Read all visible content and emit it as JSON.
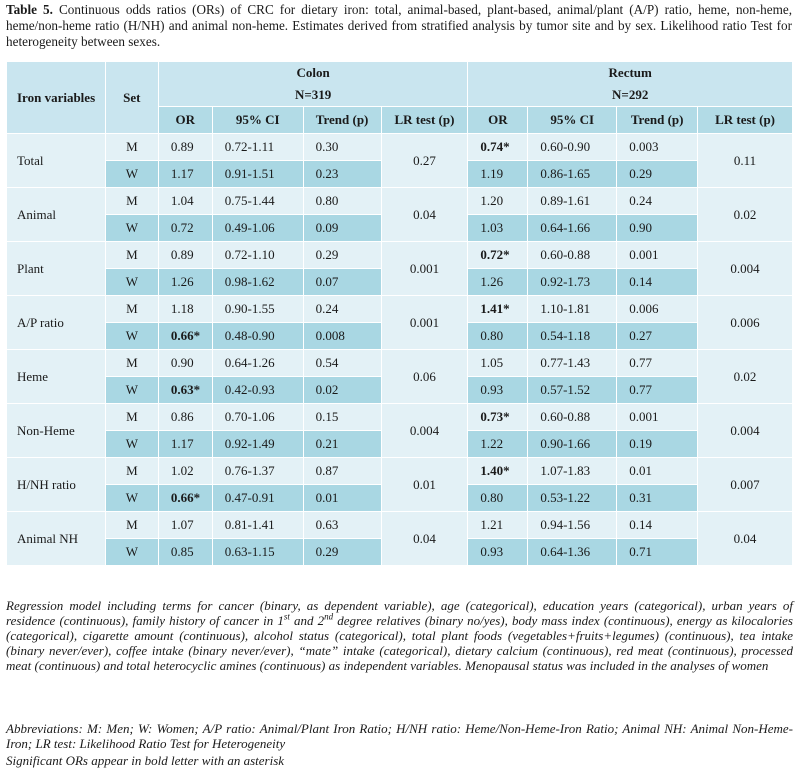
{
  "caption": {
    "label": "Table 5.",
    "text": "Continuous odds ratios (ORs) of CRC for dietary iron: total, animal-based, plant-based, animal/plant (A/P) ratio, heme, non-heme, heme/non-heme ratio (H/NH) and animal non-heme. Estimates derived from stratified analysis by tumor site and by sex. Likelihood ratio Test for heterogeneity between sexes."
  },
  "header": {
    "iron_variables": "Iron variables",
    "set": "Set",
    "colon": "Colon",
    "colon_n": "N=319",
    "rectum": "Rectum",
    "rectum_n": "N=292",
    "cols": [
      "OR",
      "95% CI",
      "Trend (p)",
      "LR test (p)",
      "OR",
      "95% CI",
      "Trend (p)",
      "LR test (p)"
    ]
  },
  "rows": [
    {
      "variable": "Total",
      "colon_lr": "0.27",
      "rectum_lr": "0.11",
      "M": {
        "c_or": "0.89",
        "c_ci": "0.72-1.11",
        "c_tr": "0.30",
        "r_or": "0.74*",
        "r_ci": "0.60-0.90",
        "r_tr": "0.003"
      },
      "W": {
        "c_or": "1.17",
        "c_ci": "0.91-1.51",
        "c_tr": "0.23",
        "r_or": "1.19",
        "r_ci": "0.86-1.65",
        "r_tr": "0.29"
      }
    },
    {
      "variable": "Animal",
      "colon_lr": "0.04",
      "rectum_lr": "0.02",
      "M": {
        "c_or": "1.04",
        "c_ci": "0.75-1.44",
        "c_tr": "0.80",
        "r_or": "1.20",
        "r_ci": "0.89-1.61",
        "r_tr": "0.24"
      },
      "W": {
        "c_or": "0.72",
        "c_ci": "0.49-1.06",
        "c_tr": "0.09",
        "r_or": "1.03",
        "r_ci": "0.64-1.66",
        "r_tr": "0.90"
      }
    },
    {
      "variable": "Plant",
      "colon_lr": "0.001",
      "rectum_lr": "0.004",
      "M": {
        "c_or": "0.89",
        "c_ci": "0.72-1.10",
        "c_tr": "0.29",
        "r_or": "0.72*",
        "r_ci": "0.60-0.88",
        "r_tr": "0.001"
      },
      "W": {
        "c_or": "1.26",
        "c_ci": "0.98-1.62",
        "c_tr": "0.07",
        "r_or": "1.26",
        "r_ci": "0.92-1.73",
        "r_tr": "0.14"
      }
    },
    {
      "variable": "A/P ratio",
      "colon_lr": "0.001",
      "rectum_lr": "0.006",
      "M": {
        "c_or": "1.18",
        "c_ci": "0.90-1.55",
        "c_tr": "0.24",
        "r_or": "1.41*",
        "r_ci": "1.10-1.81",
        "r_tr": "0.006"
      },
      "W": {
        "c_or": "0.66*",
        "c_ci": "0.48-0.90",
        "c_tr": "0.008",
        "r_or": "0.80",
        "r_ci": "0.54-1.18",
        "r_tr": "0.27"
      }
    },
    {
      "variable": "Heme",
      "colon_lr": "0.06",
      "rectum_lr": "0.02",
      "M": {
        "c_or": "0.90",
        "c_ci": "0.64-1.26",
        "c_tr": "0.54",
        "r_or": "1.05",
        "r_ci": "0.77-1.43",
        "r_tr": "0.77"
      },
      "W": {
        "c_or": "0.63*",
        "c_ci": "0.42-0.93",
        "c_tr": "0.02",
        "r_or": "0.93",
        "r_ci": "0.57-1.52",
        "r_tr": "0.77"
      }
    },
    {
      "variable": "Non-Heme",
      "colon_lr": "0.004",
      "rectum_lr": "0.004",
      "M": {
        "c_or": "0.86",
        "c_ci": "0.70-1.06",
        "c_tr": "0.15",
        "r_or": "0.73*",
        "r_ci": "0.60-0.88",
        "r_tr": "0.001"
      },
      "W": {
        "c_or": "1.17",
        "c_ci": "0.92-1.49",
        "c_tr": "0.21",
        "r_or": "1.22",
        "r_ci": "0.90-1.66",
        "r_tr": "0.19"
      }
    },
    {
      "variable": "H/NH ratio",
      "colon_lr": "0.01",
      "rectum_lr": "0.007",
      "M": {
        "c_or": "1.02",
        "c_ci": "0.76-1.37",
        "c_tr": "0.87",
        "r_or": "1.40*",
        "r_ci": "1.07-1.83",
        "r_tr": "0.01"
      },
      "W": {
        "c_or": "0.66*",
        "c_ci": "0.47-0.91",
        "c_tr": "0.01",
        "r_or": "0.80",
        "r_ci": "0.53-1.22",
        "r_tr": "0.31"
      }
    },
    {
      "variable": "Animal NH",
      "colon_lr": "0.04",
      "rectum_lr": "0.04",
      "M": {
        "c_or": "1.07",
        "c_ci": "0.81-1.41",
        "c_tr": "0.63",
        "r_or": "1.21",
        "r_ci": "0.94-1.56",
        "r_tr": "0.14"
      },
      "W": {
        "c_or": "0.85",
        "c_ci": "0.63-1.15",
        "c_tr": "0.29",
        "r_or": "0.93",
        "r_ci": "0.64-1.36",
        "r_tr": "0.71"
      }
    }
  ],
  "footnotes": {
    "regression_a": "Regression model including terms for cancer (binary, as dependent variable), age (categorical), education years (categorical), urban years of residence (continuous), family history of cancer in 1",
    "regression_sup1": "st",
    "regression_b": " and 2",
    "regression_sup2": "nd",
    "regression_c": " degree relatives (binary no/yes), body mass index (continuous), energy as kilocalories (categorical), cigarette amount (continuous), alcohol status (categorical), total plant foods (vegetables+fruits+legumes) (continuous), tea intake (binary never/ever), coffee intake (binary never/ever), “mate” intake (categorical), dietary calcium (continuous), red meat (continuous), processed meat (continuous) and total heterocyclic amines (continuous) as independent variables. Menopausal status was included in the analyses of women",
    "abbreviations": "Abbreviations: M: Men; W: Women; A/P ratio: Animal/Plant Iron Ratio; H/NH ratio: Heme/Non-Heme-Iron Ratio; Animal NH: Animal Non-Heme-Iron; LR test: Likelihood Ratio Test for Heterogeneity",
    "significance": "Significant ORs appear in bold letter with an asterisk"
  }
}
